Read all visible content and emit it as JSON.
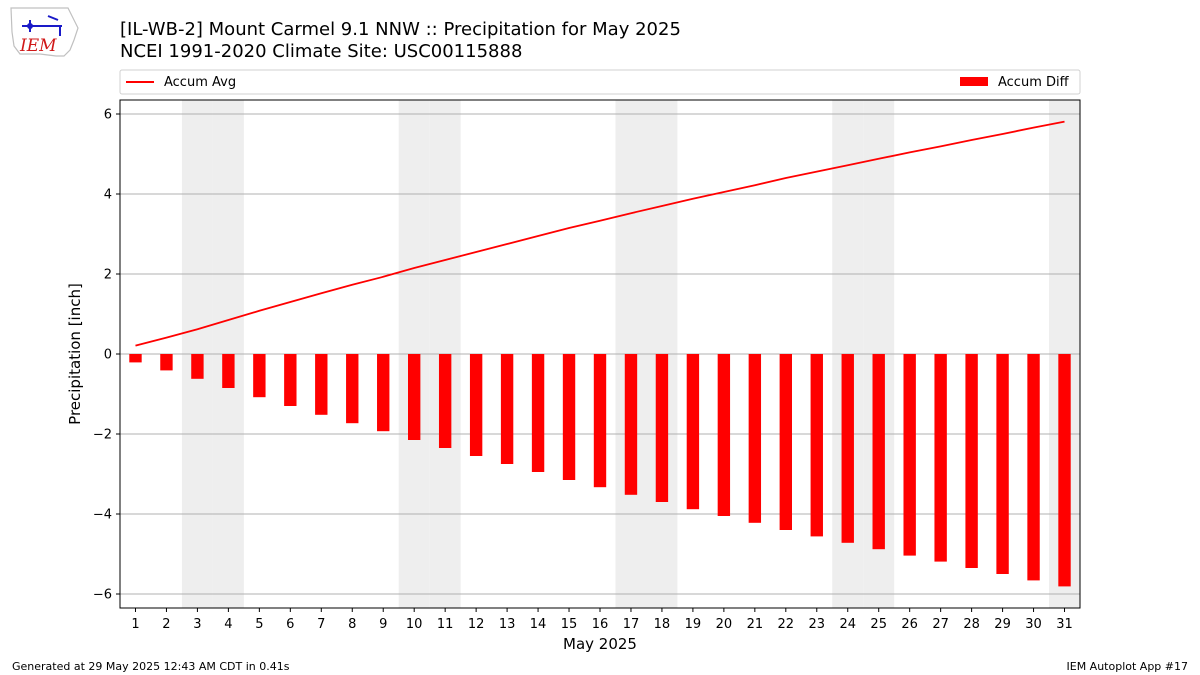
{
  "header": {
    "logo_text": "IEM",
    "title_line1": "[IL-WB-2] Mount Carmel 9.1 NNW :: Precipitation for May 2025",
    "title_line2": "NCEI 1991-2020 Climate Site: USC00115888"
  },
  "footer": {
    "generated": "Generated at 29 May 2025 12:43 AM CDT in 0.41s",
    "app": "IEM Autoplot App #17"
  },
  "colors": {
    "line": "#ff0000",
    "bar": "#ff0000",
    "weekend_band": "#eeeeee",
    "grid": "#b0b0b0"
  },
  "chart_data": {
    "type": "bar",
    "xlabel": "May 2025",
    "ylabel": "Precipitation [inch]",
    "ylim": [
      -6.35,
      6.35
    ],
    "xlim": [
      0.5,
      31.5
    ],
    "yticks": [
      -6,
      -4,
      -2,
      0,
      2,
      4,
      6
    ],
    "x": [
      1,
      2,
      3,
      4,
      5,
      6,
      7,
      8,
      9,
      10,
      11,
      12,
      13,
      14,
      15,
      16,
      17,
      18,
      19,
      20,
      21,
      22,
      23,
      24,
      25,
      26,
      27,
      28,
      29,
      30,
      31
    ],
    "weekend_days": [
      3,
      4,
      10,
      11,
      17,
      18,
      24,
      25,
      31
    ],
    "grid": "horizontal",
    "legend": [
      {
        "label": "Accum Avg",
        "kind": "line",
        "placement": "top-left"
      },
      {
        "label": "Accum Diff",
        "kind": "bar",
        "placement": "top-right"
      }
    ],
    "series": [
      {
        "name": "Accum Avg",
        "kind": "line",
        "values": [
          0.21,
          0.41,
          0.62,
          0.85,
          1.08,
          1.3,
          1.52,
          1.73,
          1.93,
          2.15,
          2.35,
          2.55,
          2.75,
          2.95,
          3.15,
          3.33,
          3.52,
          3.7,
          3.88,
          4.05,
          4.22,
          4.4,
          4.56,
          4.72,
          4.88,
          5.04,
          5.19,
          5.35,
          5.5,
          5.66,
          5.81
        ]
      },
      {
        "name": "Accum Diff",
        "kind": "bar",
        "values": [
          -0.21,
          -0.41,
          -0.62,
          -0.85,
          -1.08,
          -1.3,
          -1.52,
          -1.73,
          -1.93,
          -2.15,
          -2.35,
          -2.55,
          -2.75,
          -2.95,
          -3.15,
          -3.33,
          -3.52,
          -3.7,
          -3.88,
          -4.05,
          -4.22,
          -4.4,
          -4.56,
          -4.72,
          -4.88,
          -5.04,
          -5.19,
          -5.35,
          -5.5,
          -5.66,
          -5.81
        ]
      }
    ]
  }
}
